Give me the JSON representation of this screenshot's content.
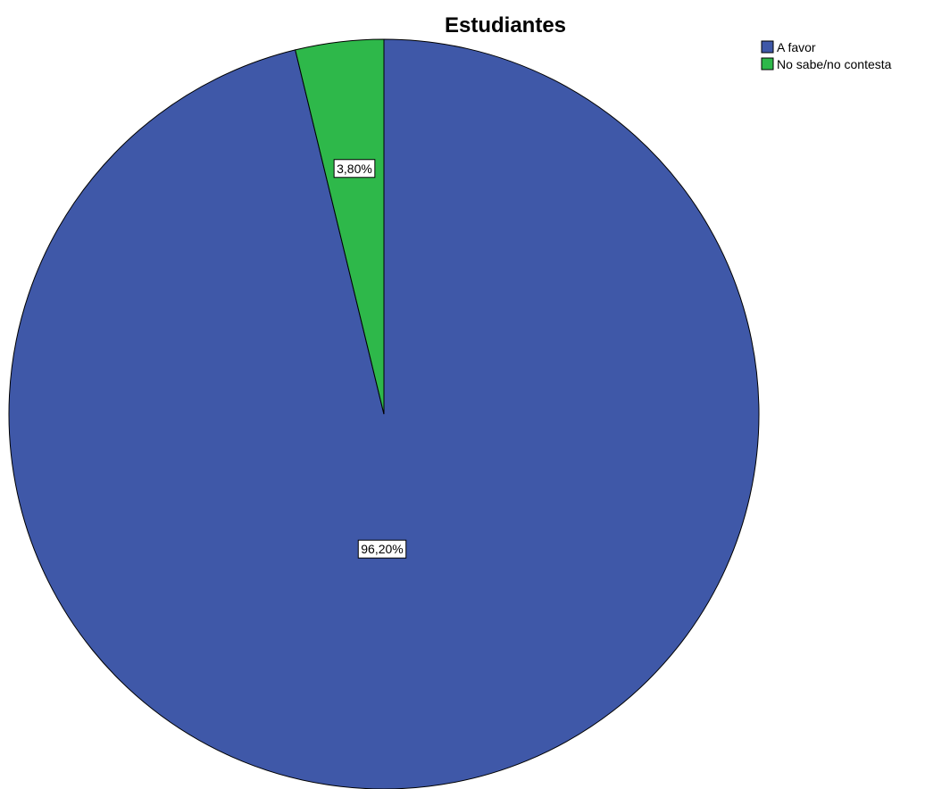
{
  "chart_data": {
    "type": "pie",
    "title": "Estudiantes",
    "categories": [
      "A favor",
      "No sabe/no contesta"
    ],
    "values": [
      96.2,
      3.8
    ],
    "data_labels": [
      "96,20%",
      "3,80%"
    ],
    "colors": [
      "#3f58a8",
      "#2eb84a"
    ],
    "start_angle": "12 o'clock",
    "direction": "clockwise",
    "legend": {
      "position": "top-right",
      "entries": [
        "A favor",
        "No sabe/no contesta"
      ]
    }
  }
}
